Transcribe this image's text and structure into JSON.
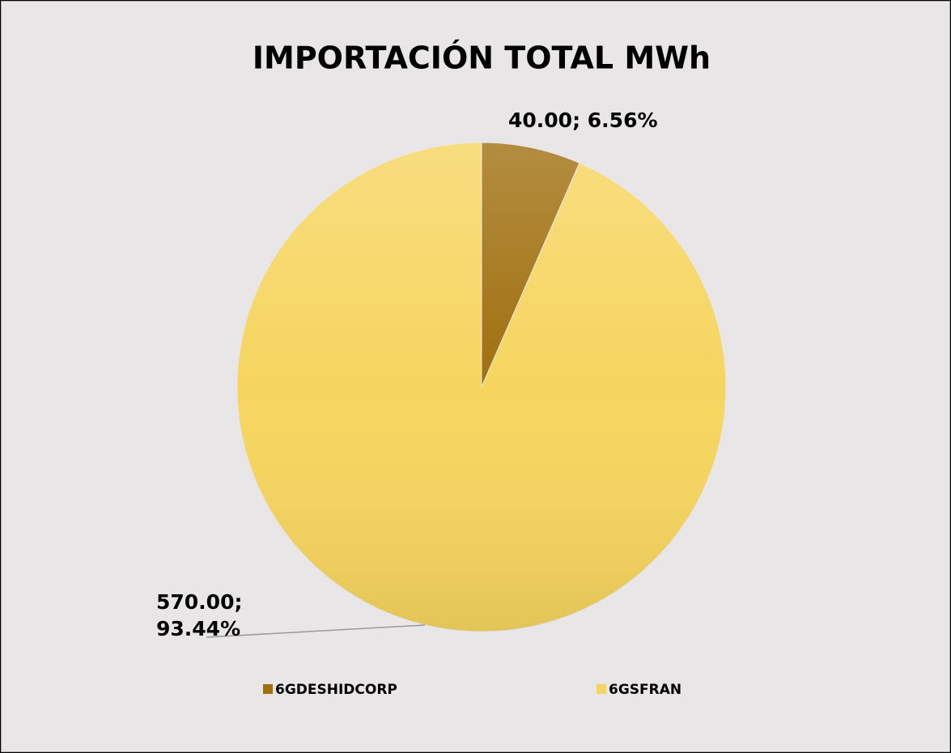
{
  "chart_data": {
    "type": "pie",
    "title": "IMPORTACIÓN TOTAL MWh",
    "categories": [
      "6GDESHIDCORP",
      "6GSFRAN"
    ],
    "values": [
      40,
      570
    ],
    "value_labels": [
      "40.00; 6.56%",
      "570.00; 93.44%"
    ],
    "colors": [
      "#a0700f",
      "#f6d55f"
    ],
    "legend": "bottom"
  }
}
